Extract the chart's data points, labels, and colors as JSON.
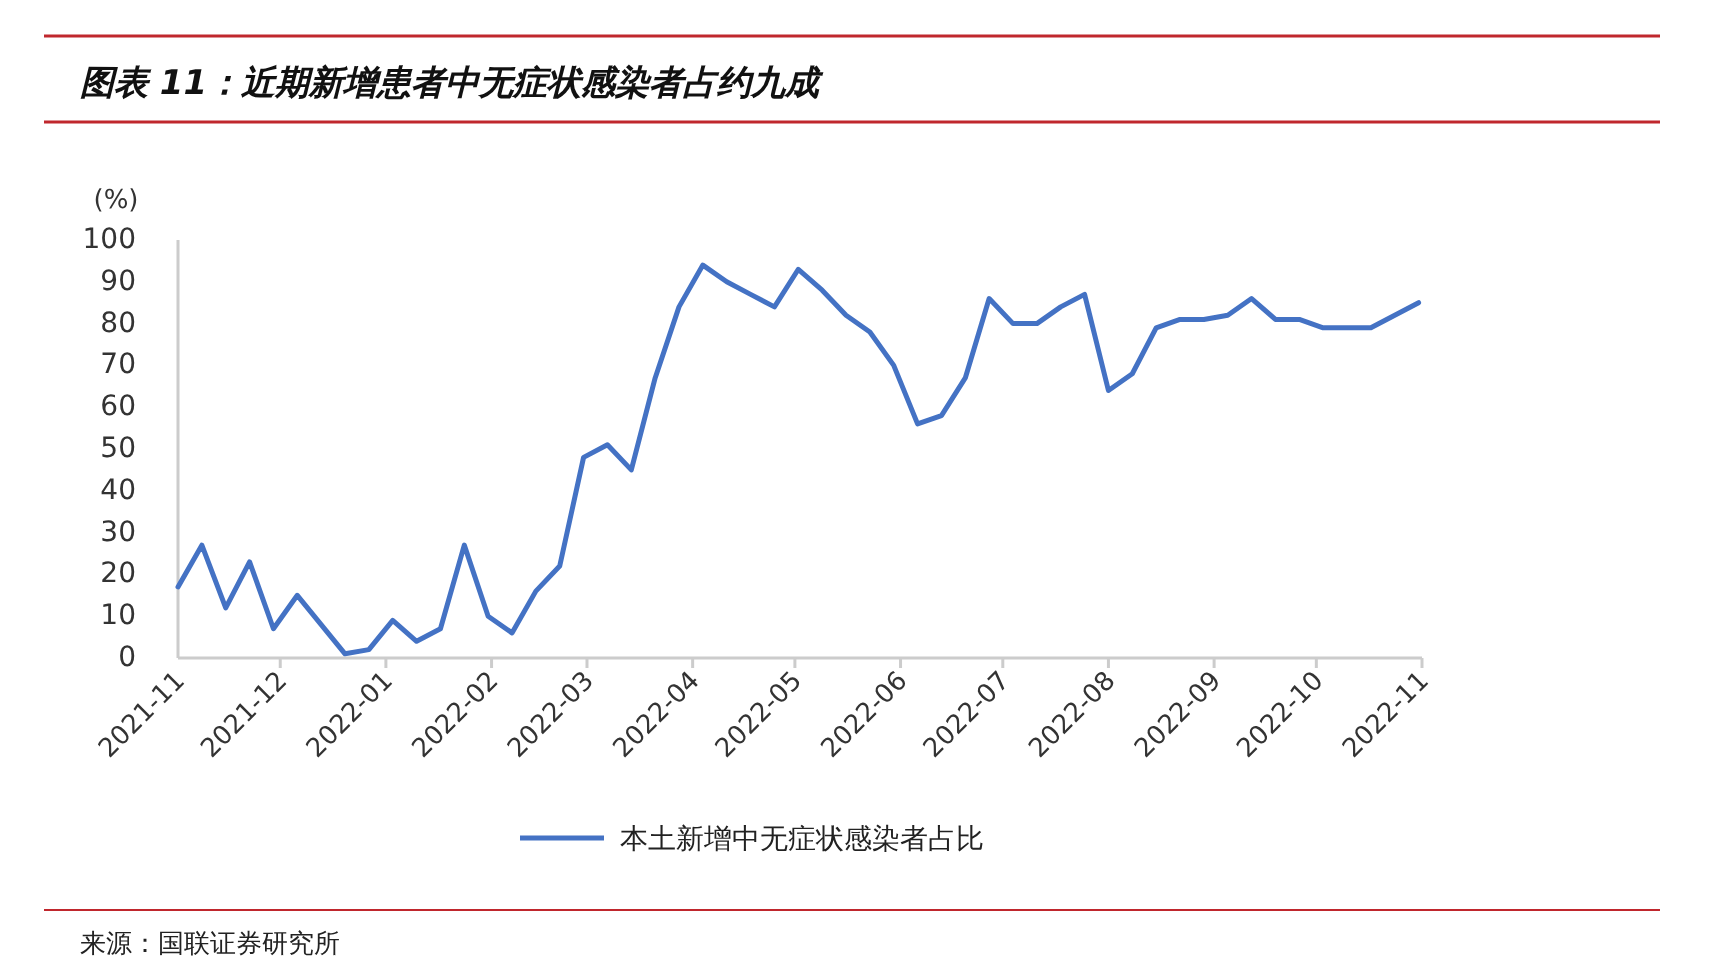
{
  "chart_data": {
    "type": "line",
    "title": "图表 11：近期新增患者中无症状感染者占约九成",
    "ylabel": "(%)",
    "x": [
      "2021-11-01",
      "2021-11-08",
      "2021-11-15",
      "2021-11-22",
      "2021-11-29",
      "2021-12-06",
      "2021-12-13",
      "2021-12-20",
      "2021-12-27",
      "2022-01-03",
      "2022-01-10",
      "2022-01-17",
      "2022-01-24",
      "2022-01-31",
      "2022-02-07",
      "2022-02-14",
      "2022-02-21",
      "2022-02-28",
      "2022-03-07",
      "2022-03-14",
      "2022-03-21",
      "2022-03-28",
      "2022-04-04",
      "2022-04-11",
      "2022-04-18",
      "2022-04-25",
      "2022-05-02",
      "2022-05-09",
      "2022-05-16",
      "2022-05-23",
      "2022-05-30",
      "2022-06-06",
      "2022-06-13",
      "2022-06-20",
      "2022-06-27",
      "2022-07-04",
      "2022-07-11",
      "2022-07-18",
      "2022-07-25",
      "2022-08-01",
      "2022-08-08",
      "2022-08-15",
      "2022-08-22",
      "2022-08-29",
      "2022-09-05",
      "2022-09-12",
      "2022-09-19",
      "2022-09-26",
      "2022-10-03",
      "2022-10-10",
      "2022-10-17",
      "2022-10-24",
      "2022-10-31"
    ],
    "series": [
      {
        "name": "本土新增中无症状感染者占比",
        "color": "#4472c4",
        "values": [
          17,
          27,
          12,
          23,
          7,
          15,
          8,
          1,
          2,
          9,
          4,
          7,
          27,
          10,
          6,
          16,
          22,
          48,
          51,
          45,
          67,
          84,
          94,
          90,
          87,
          84,
          93,
          88,
          82,
          78,
          70,
          56,
          58,
          67,
          86,
          80,
          80,
          84,
          87,
          64,
          68,
          79,
          81,
          81,
          82,
          86,
          81,
          81,
          79,
          79,
          79,
          82,
          85
        ]
      }
    ],
    "xlim": [
      "2021-11-01",
      "2022-11-01"
    ],
    "xticks": [
      {
        "value": "2021-11-01",
        "label": "2021-11"
      },
      {
        "value": "2021-12-01",
        "label": "2021-12"
      },
      {
        "value": "2022-01-01",
        "label": "2022-01"
      },
      {
        "value": "2022-02-01",
        "label": "2022-02"
      },
      {
        "value": "2022-03-01",
        "label": "2022-03"
      },
      {
        "value": "2022-04-01",
        "label": "2022-04"
      },
      {
        "value": "2022-05-01",
        "label": "2022-05"
      },
      {
        "value": "2022-06-01",
        "label": "2022-06"
      },
      {
        "value": "2022-07-01",
        "label": "2022-07"
      },
      {
        "value": "2022-08-01",
        "label": "2022-08"
      },
      {
        "value": "2022-09-01",
        "label": "2022-09"
      },
      {
        "value": "2022-10-01",
        "label": "2022-10"
      },
      {
        "value": "2022-11-01",
        "label": "2022-11"
      }
    ],
    "ylim": [
      0,
      100
    ],
    "yticks": [
      0,
      10,
      20,
      30,
      40,
      50,
      60,
      70,
      80,
      90,
      100
    ],
    "legend": "bottom",
    "grid": false,
    "marker": "none",
    "line_style": "solid",
    "annotations": [
      "来源：国联证券研究所"
    ]
  }
}
